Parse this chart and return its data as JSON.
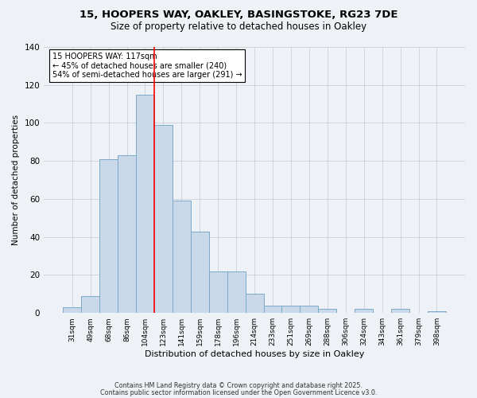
{
  "title_line1": "15, HOOPERS WAY, OAKLEY, BASINGSTOKE, RG23 7DE",
  "title_line2": "Size of property relative to detached houses in Oakley",
  "xlabel": "Distribution of detached houses by size in Oakley",
  "ylabel": "Number of detached properties",
  "categories": [
    "31sqm",
    "49sqm",
    "68sqm",
    "86sqm",
    "104sqm",
    "123sqm",
    "141sqm",
    "159sqm",
    "178sqm",
    "196sqm",
    "214sqm",
    "233sqm",
    "251sqm",
    "269sqm",
    "288sqm",
    "306sqm",
    "324sqm",
    "343sqm",
    "361sqm",
    "379sqm",
    "398sqm"
  ],
  "values": [
    3,
    9,
    81,
    83,
    115,
    99,
    59,
    43,
    22,
    22,
    10,
    4,
    4,
    4,
    2,
    0,
    2,
    0,
    2,
    0,
    1
  ],
  "bar_color": "#c9d9ea",
  "bar_edge_color": "#7aaac8",
  "grid_color": "#c8d0d8",
  "red_line_index": 5,
  "annotation_title": "15 HOOPERS WAY: 117sqm",
  "annotation_line2": "← 45% of detached houses are smaller (240)",
  "annotation_line3": "54% of semi-detached houses are larger (291) →",
  "footer_line1": "Contains HM Land Registry data © Crown copyright and database right 2025.",
  "footer_line2": "Contains public sector information licensed under the Open Government Licence v3.0.",
  "ylim": [
    0,
    140
  ],
  "yticks": [
    0,
    20,
    40,
    60,
    80,
    100,
    120,
    140
  ],
  "background_color": "#eef2f7",
  "plot_background": "#eef2f7",
  "figsize": [
    6.0,
    5.0
  ],
  "dpi": 100
}
